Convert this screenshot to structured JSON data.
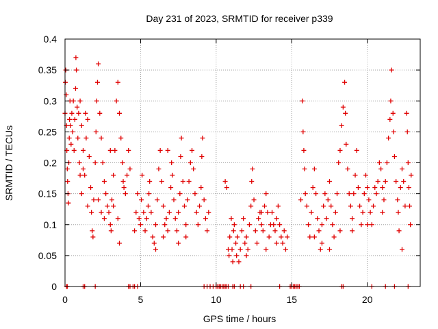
{
  "chart_data": {
    "type": "scatter",
    "title": "Day 231 of 2023, SRMTID for receiver p339",
    "xlabel": "GPS time / hours",
    "ylabel": "SRMTID / TECUs",
    "xlim": [
      0,
      23.5
    ],
    "ylim": [
      0,
      0.4
    ],
    "xticks": [
      0,
      5,
      10,
      15,
      20
    ],
    "yticks": [
      0,
      0.05,
      0.1,
      0.15,
      0.2,
      0.25,
      0.3,
      0.35,
      0.4
    ],
    "ytick_labels": [
      "0",
      "0.05",
      "0.1",
      "0.15",
      "0.2",
      "0.25",
      "0.3",
      "0.35",
      "0.4"
    ],
    "grid": true,
    "marker": "+",
    "marker_color": "#e00000",
    "series": [
      {
        "name": "SRMTID",
        "points": [
          [
            0.0,
            0.28
          ],
          [
            0.02,
            0.33
          ],
          [
            0.05,
            0.35
          ],
          [
            0.08,
            0.31
          ],
          [
            0.1,
            0.26
          ],
          [
            0.12,
            0.22
          ],
          [
            0.15,
            0.19
          ],
          [
            0.17,
            0.17
          ],
          [
            0.2,
            0.15
          ],
          [
            0.22,
            0.135
          ],
          [
            0.25,
            0.2
          ],
          [
            0.28,
            0.24
          ],
          [
            0.3,
            0.27
          ],
          [
            0.33,
            0.3
          ],
          [
            0.36,
            0.26
          ],
          [
            0.4,
            0.23
          ],
          [
            0.45,
            0.28
          ],
          [
            0.5,
            0.25
          ],
          [
            0.55,
            0.3
          ],
          [
            0.6,
            0.22
          ],
          [
            0.65,
            0.27
          ],
          [
            0.7,
            0.32
          ],
          [
            0.72,
            0.37
          ],
          [
            0.75,
            0.35
          ],
          [
            0.8,
            0.29
          ],
          [
            0.85,
            0.24
          ],
          [
            0.9,
            0.28
          ],
          [
            0.95,
            0.2
          ],
          [
            1.0,
            0.3
          ],
          [
            1.1,
            0.26
          ],
          [
            1.2,
            0.22
          ],
          [
            1.3,
            0.18
          ],
          [
            1.35,
            0.28
          ],
          [
            1.4,
            0.24
          ],
          [
            1.5,
            0.27
          ],
          [
            1.6,
            0.21
          ],
          [
            1.7,
            0.16
          ],
          [
            1.75,
            0.12
          ],
          [
            1.8,
            0.09
          ],
          [
            1.85,
            0.08
          ],
          [
            1.9,
            0.14
          ],
          [
            2.0,
            0.2
          ],
          [
            2.05,
            0.25
          ],
          [
            2.1,
            0.3
          ],
          [
            2.15,
            0.33
          ],
          [
            2.2,
            0.36
          ],
          [
            2.3,
            0.28
          ],
          [
            2.4,
            0.24
          ],
          [
            2.5,
            0.2
          ],
          [
            2.6,
            0.17
          ],
          [
            2.7,
            0.15
          ],
          [
            2.8,
            0.13
          ],
          [
            2.9,
            0.12
          ],
          [
            3.0,
            0.1
          ],
          [
            3.05,
            0.09
          ],
          [
            3.1,
            0.14
          ],
          [
            3.2,
            0.18
          ],
          [
            3.3,
            0.22
          ],
          [
            3.4,
            0.3
          ],
          [
            3.5,
            0.33
          ],
          [
            3.6,
            0.28
          ],
          [
            3.7,
            0.24
          ],
          [
            3.8,
            0.2
          ],
          [
            3.85,
            0.17
          ],
          [
            3.9,
            0.16
          ],
          [
            4.0,
            0.15
          ],
          [
            4.1,
            0.18
          ],
          [
            4.2,
            0.22
          ],
          [
            4.3,
            0.19
          ],
          [
            1.0,
            0.18
          ],
          [
            1.1,
            0.15
          ],
          [
            1.2,
            0.19
          ],
          [
            1.5,
            0.13
          ],
          [
            2.2,
            0.14
          ],
          [
            2.4,
            0.12
          ],
          [
            2.6,
            0.11
          ],
          [
            3.0,
            0.22
          ],
          [
            3.2,
            0.13
          ],
          [
            3.5,
            0.11
          ],
          [
            3.6,
            0.07
          ],
          [
            4.6,
            0.09
          ],
          [
            4.7,
            0.12
          ],
          [
            4.8,
            0.15
          ],
          [
            4.9,
            0.11
          ],
          [
            5.0,
            0.1
          ],
          [
            5.05,
            0.14
          ],
          [
            5.1,
            0.18
          ],
          [
            5.2,
            0.12
          ],
          [
            5.3,
            0.09
          ],
          [
            5.4,
            0.11
          ],
          [
            5.5,
            0.13
          ],
          [
            5.55,
            0.15
          ],
          [
            5.6,
            0.17
          ],
          [
            5.7,
            0.12
          ],
          [
            5.8,
            0.08
          ],
          [
            5.9,
            0.07
          ],
          [
            6.0,
            0.1
          ],
          [
            6.1,
            0.14
          ],
          [
            6.2,
            0.19
          ],
          [
            6.3,
            0.22
          ],
          [
            6.4,
            0.17
          ],
          [
            6.5,
            0.13
          ],
          [
            6.6,
            0.1
          ],
          [
            6.7,
            0.11
          ],
          [
            6.8,
            0.09
          ],
          [
            6.9,
            0.12
          ],
          [
            7.0,
            0.16
          ],
          [
            7.05,
            0.2
          ],
          [
            7.1,
            0.18
          ],
          [
            7.2,
            0.14
          ],
          [
            7.3,
            0.11
          ],
          [
            7.4,
            0.09
          ],
          [
            7.5,
            0.12
          ],
          [
            7.6,
            0.15
          ],
          [
            7.65,
            0.21
          ],
          [
            7.7,
            0.24
          ],
          [
            7.8,
            0.17
          ],
          [
            7.9,
            0.13
          ],
          [
            8.0,
            0.1
          ],
          [
            8.1,
            0.14
          ],
          [
            8.2,
            0.17
          ],
          [
            8.3,
            0.2
          ],
          [
            8.4,
            0.22
          ],
          [
            8.5,
            0.19
          ],
          [
            8.6,
            0.15
          ],
          [
            8.7,
            0.12
          ],
          [
            8.8,
            0.1
          ],
          [
            8.9,
            0.13
          ],
          [
            9.0,
            0.16
          ],
          [
            9.05,
            0.21
          ],
          [
            9.1,
            0.24
          ],
          [
            9.2,
            0.14
          ],
          [
            9.3,
            0.11
          ],
          [
            9.4,
            0.09
          ],
          [
            9.5,
            0.12
          ],
          [
            6.0,
            0.06
          ],
          [
            6.5,
            0.08
          ],
          [
            7.5,
            0.07
          ],
          [
            8.0,
            0.08
          ],
          [
            6.8,
            0.22
          ],
          [
            10.6,
            0.17
          ],
          [
            10.7,
            0.16
          ],
          [
            10.8,
            0.06
          ],
          [
            10.85,
            0.05
          ],
          [
            10.9,
            0.08
          ],
          [
            11.0,
            0.11
          ],
          [
            11.05,
            0.06
          ],
          [
            11.1,
            0.04
          ],
          [
            11.15,
            0.09
          ],
          [
            11.2,
            0.1
          ],
          [
            11.3,
            0.07
          ],
          [
            11.35,
            0.05
          ],
          [
            11.4,
            0.08
          ],
          [
            11.5,
            0.04
          ],
          [
            11.6,
            0.06
          ],
          [
            11.7,
            0.09
          ],
          [
            11.8,
            0.11
          ],
          [
            11.9,
            0.07
          ],
          [
            12.0,
            0.05
          ],
          [
            12.1,
            0.06
          ],
          [
            12.2,
            0.1
          ],
          [
            12.3,
            0.13
          ],
          [
            12.35,
            0.17
          ],
          [
            12.4,
            0.19
          ],
          [
            12.5,
            0.14
          ],
          [
            12.6,
            0.09
          ],
          [
            12.7,
            0.07
          ],
          [
            12.8,
            0.11
          ],
          [
            12.9,
            0.12
          ],
          [
            13.0,
            0.1
          ],
          [
            13.1,
            0.09
          ],
          [
            13.2,
            0.13
          ],
          [
            13.3,
            0.15
          ],
          [
            13.4,
            0.12
          ],
          [
            13.5,
            0.08
          ],
          [
            13.6,
            0.1
          ],
          [
            13.7,
            0.12
          ],
          [
            13.8,
            0.1
          ],
          [
            13.9,
            0.09
          ],
          [
            14.0,
            0.11
          ],
          [
            14.1,
            0.13
          ],
          [
            14.2,
            0.1
          ],
          [
            14.3,
            0.08
          ],
          [
            14.4,
            0.07
          ],
          [
            14.5,
            0.09
          ],
          [
            14.6,
            0.06
          ],
          [
            14.7,
            0.08
          ],
          [
            12.0,
            0.08
          ],
          [
            13.0,
            0.12
          ],
          [
            14.0,
            0.07
          ],
          [
            13.3,
            0.06
          ],
          [
            15.6,
            0.14
          ],
          [
            15.7,
            0.3
          ],
          [
            15.75,
            0.25
          ],
          [
            15.8,
            0.22
          ],
          [
            15.85,
            0.19
          ],
          [
            15.9,
            0.15
          ],
          [
            16.0,
            0.13
          ],
          [
            16.1,
            0.1
          ],
          [
            16.2,
            0.08
          ],
          [
            16.3,
            0.12
          ],
          [
            16.4,
            0.16
          ],
          [
            16.5,
            0.19
          ],
          [
            16.6,
            0.15
          ],
          [
            16.7,
            0.11
          ],
          [
            16.8,
            0.09
          ],
          [
            16.9,
            0.06
          ],
          [
            17.0,
            0.1
          ],
          [
            17.1,
            0.13
          ],
          [
            17.2,
            0.15
          ],
          [
            17.3,
            0.11
          ],
          [
            17.4,
            0.14
          ],
          [
            17.5,
            0.17
          ],
          [
            17.6,
            0.13
          ],
          [
            17.7,
            0.1
          ],
          [
            17.8,
            0.08
          ],
          [
            17.9,
            0.12
          ],
          [
            18.0,
            0.15
          ],
          [
            18.1,
            0.2
          ],
          [
            18.2,
            0.22
          ],
          [
            18.3,
            0.26
          ],
          [
            18.4,
            0.29
          ],
          [
            18.5,
            0.33
          ],
          [
            18.55,
            0.28
          ],
          [
            18.6,
            0.23
          ],
          [
            18.7,
            0.19
          ],
          [
            18.8,
            0.15
          ],
          [
            18.9,
            0.13
          ],
          [
            19.0,
            0.11
          ],
          [
            19.1,
            0.15
          ],
          [
            19.2,
            0.18
          ],
          [
            19.3,
            0.22
          ],
          [
            19.4,
            0.16
          ],
          [
            19.5,
            0.13
          ],
          [
            19.6,
            0.1
          ],
          [
            19.7,
            0.12
          ],
          [
            19.8,
            0.15
          ],
          [
            19.9,
            0.18
          ],
          [
            20.0,
            0.16
          ],
          [
            20.1,
            0.14
          ],
          [
            20.2,
            0.12
          ],
          [
            20.3,
            0.1
          ],
          [
            20.4,
            0.13
          ],
          [
            20.5,
            0.16
          ],
          [
            20.6,
            0.15
          ],
          [
            20.7,
            0.17
          ],
          [
            20.8,
            0.2
          ],
          [
            20.9,
            0.19
          ],
          [
            21.0,
            0.16
          ],
          [
            21.1,
            0.14
          ],
          [
            21.2,
            0.17
          ],
          [
            21.3,
            0.2
          ],
          [
            21.4,
            0.24
          ],
          [
            21.5,
            0.27
          ],
          [
            21.55,
            0.3
          ],
          [
            21.6,
            0.35
          ],
          [
            21.7,
            0.28
          ],
          [
            21.75,
            0.25
          ],
          [
            21.8,
            0.21
          ],
          [
            21.9,
            0.17
          ],
          [
            22.0,
            0.14
          ],
          [
            22.05,
            0.12
          ],
          [
            22.1,
            0.09
          ],
          [
            22.2,
            0.16
          ],
          [
            22.3,
            0.19
          ],
          [
            22.4,
            0.17
          ],
          [
            22.5,
            0.13
          ],
          [
            22.6,
            0.28
          ],
          [
            22.65,
            0.25
          ],
          [
            22.7,
            0.2
          ],
          [
            22.75,
            0.16
          ],
          [
            22.8,
            0.13
          ],
          [
            22.85,
            0.1
          ],
          [
            22.9,
            0.18
          ],
          [
            16.5,
            0.08
          ],
          [
            17.0,
            0.07
          ],
          [
            19.0,
            0.09
          ],
          [
            20.0,
            0.1
          ],
          [
            21.0,
            0.12
          ],
          [
            22.3,
            0.06
          ],
          [
            18.2,
            0.09
          ],
          [
            17.5,
            0.06
          ]
        ],
        "zero_points": [
          0.1,
          0.15,
          1.2,
          1.3,
          2.0,
          4.2,
          4.3,
          4.5,
          4.6,
          4.8,
          9.2,
          9.4,
          9.6,
          9.8,
          10.0,
          10.1,
          10.2,
          10.3,
          10.4,
          10.5,
          10.6,
          10.7,
          10.8,
          11.1,
          11.2,
          11.6,
          11.8,
          12.3,
          14.2,
          14.9,
          15.0,
          15.1,
          15.2,
          15.3,
          15.4,
          15.5,
          18.3,
          18.4,
          20.3,
          21.2,
          21.8,
          22.7
        ]
      }
    ]
  }
}
